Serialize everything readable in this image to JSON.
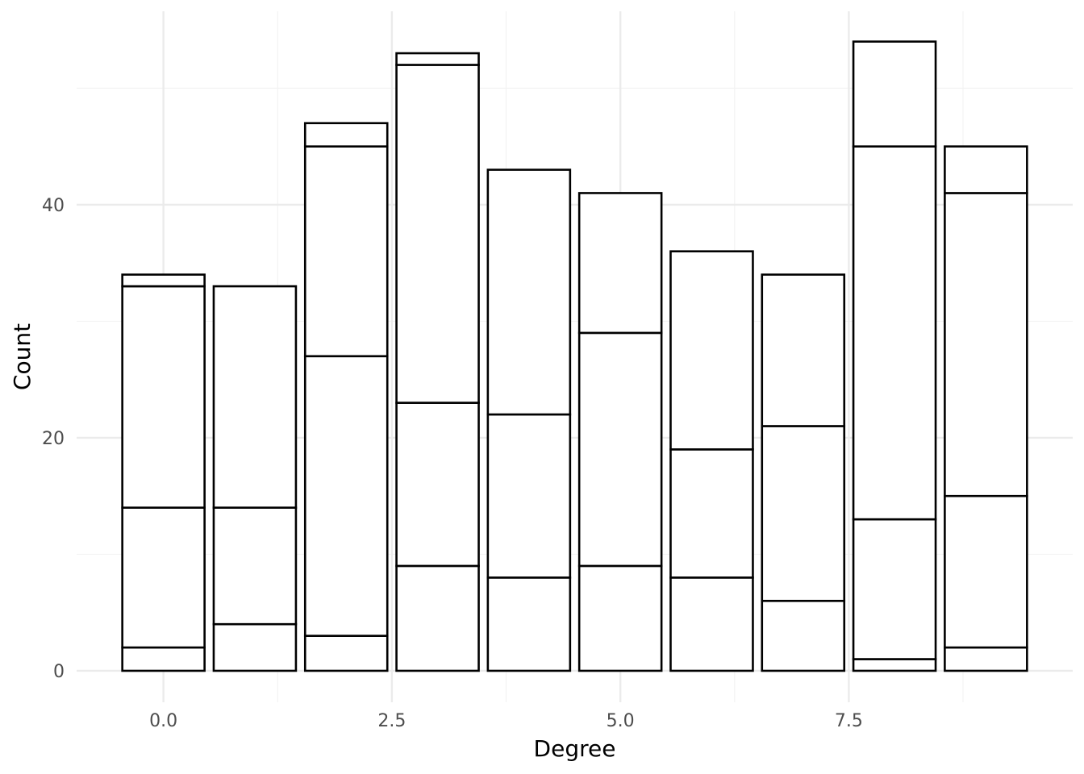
{
  "chart_data": {
    "type": "bar",
    "stacked": true,
    "title": "",
    "xlabel": "Degree",
    "ylabel": "Count",
    "x": [
      0,
      1,
      2,
      3,
      4,
      5,
      6,
      7,
      8,
      9
    ],
    "stack_boundaries": [
      [
        0,
        2,
        14,
        33,
        34
      ],
      [
        0,
        4,
        14,
        33
      ],
      [
        0,
        3,
        27,
        45,
        47
      ],
      [
        0,
        9,
        23,
        52,
        53
      ],
      [
        0,
        8,
        22,
        43
      ],
      [
        0,
        9,
        29,
        41
      ],
      [
        0,
        8,
        19,
        36
      ],
      [
        0,
        6,
        21,
        34
      ],
      [
        0,
        1,
        13,
        45,
        54
      ],
      [
        0,
        2,
        15,
        41,
        45
      ]
    ],
    "totals": [
      34,
      33,
      47,
      53,
      43,
      41,
      36,
      34,
      54,
      45
    ],
    "xlim": [
      -0.95,
      9.95
    ],
    "ylim": [
      -2.7,
      56.6
    ],
    "x_ticks": [
      0.0,
      2.5,
      5.0,
      7.5
    ],
    "x_tick_labels": [
      "0.0",
      "2.5",
      "5.0",
      "7.5"
    ],
    "y_ticks": [
      0,
      20,
      40
    ],
    "y_tick_labels": [
      "0",
      "20",
      "40"
    ],
    "grid": true,
    "legend": "none",
    "colors": {
      "bar_fill": "#ffffff",
      "bar_outline": "#000000",
      "grid_major": "#ebebeb",
      "grid_minor": "#f3f3f3",
      "tick_text": "#4d4d4d",
      "axis_title": "#000000"
    }
  }
}
